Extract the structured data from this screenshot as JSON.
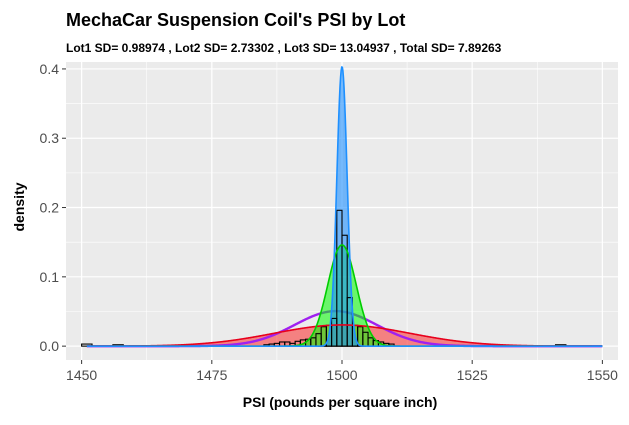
{
  "chart_data": {
    "type": "area",
    "title": "MechaCar Suspension Coil's PSI by Lot",
    "subtitle": "Lot1 SD= 0.98974 ,  Lot2 SD= 2.73302 ,  Lot3 SD= 13.04937 ,  Total SD= 7.89263",
    "xlabel": "PSI (pounds per square inch)",
    "ylabel": "density",
    "xlim": [
      1447,
      1553
    ],
    "ylim": [
      -0.02,
      0.41
    ],
    "x_ticks": [
      "1450",
      "1475",
      "1500",
      "1525",
      "1550"
    ],
    "y_ticks": [
      "0.0",
      "0.1",
      "0.2",
      "0.3",
      "0.4"
    ],
    "grid": true,
    "background": "#ebebeb",
    "legend": "none",
    "series": [
      {
        "kind": "normal_density",
        "mean": 1500.0,
        "sd": 13.04937,
        "fill": "#ff0000",
        "fill_opacity": 0.45,
        "stroke": "#e8001c"
      },
      {
        "kind": "normal_density",
        "mean": 1498.8,
        "sd": 7.89263,
        "fill": "none",
        "stroke": "#a020f0"
      },
      {
        "kind": "normal_density",
        "mean": 1500.0,
        "sd": 2.73302,
        "fill": "#00ff00",
        "fill_opacity": 0.55,
        "stroke": "#00cd00"
      },
      {
        "kind": "normal_density",
        "mean": 1500.0,
        "sd": 0.98974,
        "fill": "#1e90ff",
        "fill_opacity": 0.6,
        "stroke": "#1e90ff"
      }
    ],
    "histogram": {
      "bin_width": 1,
      "stroke": "#000000",
      "bins": [
        {
          "x0": 1450,
          "x1": 1452,
          "density": 0.003
        },
        {
          "x0": 1456,
          "x1": 1458,
          "density": 0.002
        },
        {
          "x0": 1485,
          "x1": 1486,
          "density": 0.002
        },
        {
          "x0": 1486,
          "x1": 1487,
          "density": 0.003
        },
        {
          "x0": 1487,
          "x1": 1488,
          "density": 0.004
        },
        {
          "x0": 1488,
          "x1": 1489,
          "density": 0.006
        },
        {
          "x0": 1489,
          "x1": 1490,
          "density": 0.006
        },
        {
          "x0": 1490,
          "x1": 1491,
          "density": 0.004
        },
        {
          "x0": 1491,
          "x1": 1492,
          "density": 0.007
        },
        {
          "x0": 1492,
          "x1": 1493,
          "density": 0.009
        },
        {
          "x0": 1493,
          "x1": 1494,
          "density": 0.01
        },
        {
          "x0": 1494,
          "x1": 1495,
          "density": 0.012
        },
        {
          "x0": 1495,
          "x1": 1496,
          "density": 0.018
        },
        {
          "x0": 1496,
          "x1": 1497,
          "density": 0.028
        },
        {
          "x0": 1497,
          "x1": 1498,
          "density": 0.03
        },
        {
          "x0": 1498,
          "x1": 1499,
          "density": 0.04
        },
        {
          "x0": 1499,
          "x1": 1500,
          "density": 0.196
        },
        {
          "x0": 1500,
          "x1": 1501,
          "density": 0.16
        },
        {
          "x0": 1501,
          "x1": 1502,
          "density": 0.07
        },
        {
          "x0": 1502,
          "x1": 1503,
          "density": 0.03
        },
        {
          "x0": 1503,
          "x1": 1504,
          "density": 0.028
        },
        {
          "x0": 1504,
          "x1": 1505,
          "density": 0.02
        },
        {
          "x0": 1505,
          "x1": 1506,
          "density": 0.012
        },
        {
          "x0": 1506,
          "x1": 1507,
          "density": 0.008
        },
        {
          "x0": 1507,
          "x1": 1508,
          "density": 0.006
        },
        {
          "x0": 1508,
          "x1": 1509,
          "density": 0.004
        },
        {
          "x0": 1509,
          "x1": 1510,
          "density": 0.003
        },
        {
          "x0": 1541,
          "x1": 1543,
          "density": 0.002
        }
      ]
    }
  }
}
